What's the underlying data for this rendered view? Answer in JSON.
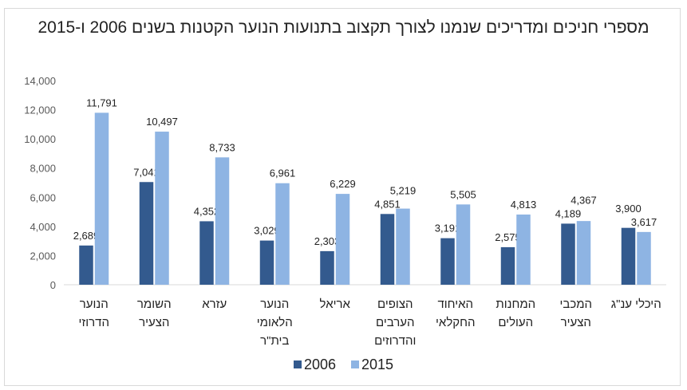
{
  "chart_data": {
    "type": "bar",
    "title": "מספרי חניכים ומדריכים שנמנו לצורך תקצוב בתנועות הנוער הקטנות בשנים 2006 ו-2015",
    "categories": [
      [
        "הנוער",
        "הדרוזי"
      ],
      [
        "השומר",
        "הצעיר"
      ],
      [
        "עזרא"
      ],
      [
        "הנוער",
        "הלאומי",
        "בית\"ר"
      ],
      [
        "אריאל"
      ],
      [
        "הצופים",
        "הערבים",
        "והדרוזים"
      ],
      [
        "האיחוד",
        "החקלאי"
      ],
      [
        "המחנות",
        "העולים"
      ],
      [
        "המכבי",
        "הצעיר"
      ],
      [
        "היכלי ענ\"ג"
      ]
    ],
    "series": [
      {
        "name": "2006",
        "color": "#335a8e",
        "values": [
          2689,
          7041,
          4352,
          3029,
          2303,
          4851,
          3191,
          2575,
          4189,
          3900
        ]
      },
      {
        "name": "2015",
        "color": "#8eb4e3",
        "values": [
          11791,
          10497,
          8733,
          6961,
          6229,
          5219,
          5505,
          4813,
          4367,
          3617
        ]
      }
    ],
    "ylim": [
      0,
      14000
    ],
    "yticks": [
      "0",
      "2,000",
      "4,000",
      "6,000",
      "8,000",
      "10,000",
      "12,000",
      "14,000"
    ],
    "grid": false,
    "legend": "bottom",
    "data_labels": true
  }
}
